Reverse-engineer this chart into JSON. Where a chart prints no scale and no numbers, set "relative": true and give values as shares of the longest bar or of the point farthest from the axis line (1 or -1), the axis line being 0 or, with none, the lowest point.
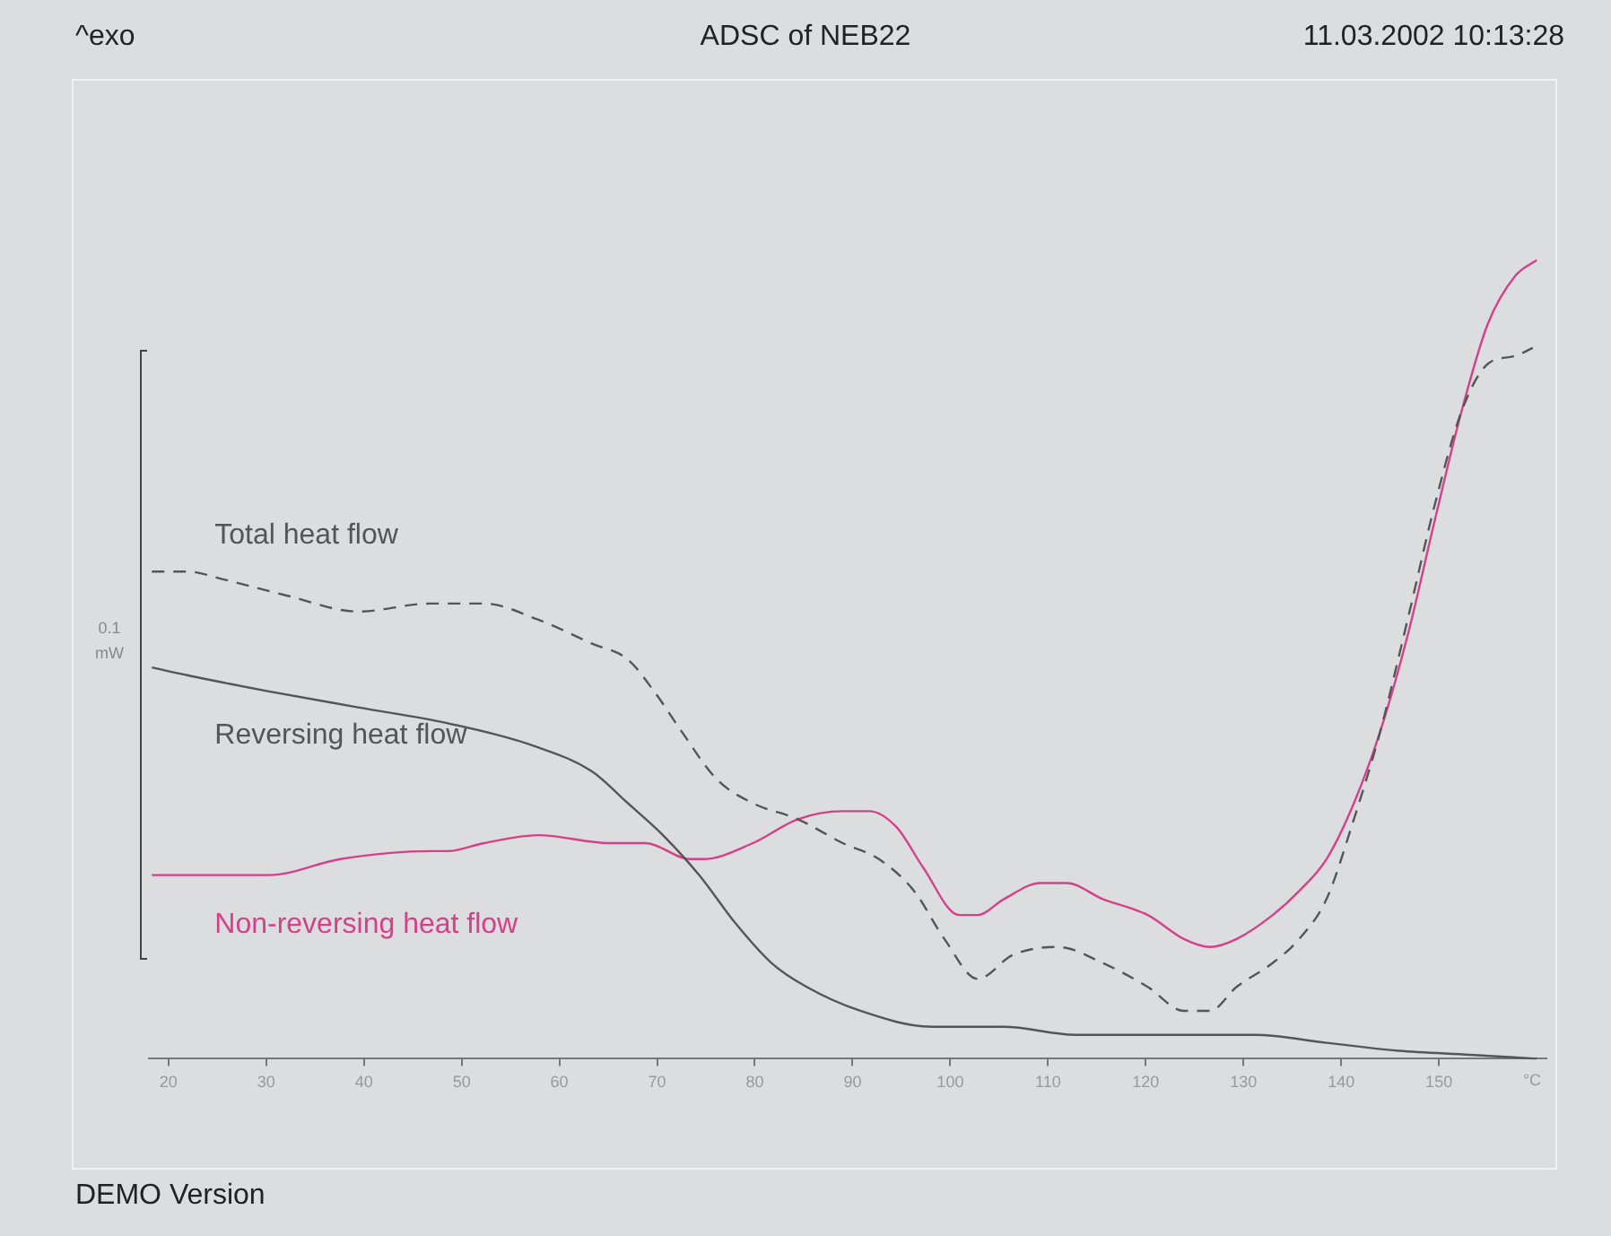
{
  "chart_data": {
    "type": "line",
    "title": "ADSC of NEB22",
    "xlabel": "°C",
    "relative": true,
    "legend": false,
    "grid": false,
    "marker": "none",
    "xlim": [
      18,
      161
    ],
    "xticks": [
      20,
      30,
      40,
      50,
      60,
      70,
      80,
      90,
      100,
      110,
      120,
      130,
      140,
      150
    ],
    "annotations": [
      "^exo",
      "11.03.2002 10:13:28",
      "DEMO Version",
      "0.1 mW"
    ],
    "series": [
      {
        "name": "Total heat flow",
        "color": "#555555",
        "line_style": "dashed",
        "x": [
          18.3,
          22.0,
          25.7,
          32.1,
          39.4,
          46.8,
          52.3,
          57.8,
          63.3,
          67.0,
          69.7,
          72.5,
          76.1,
          79.8,
          84.4,
          89.0,
          92.7,
          96.3,
          99.4,
          102.8,
          106.4,
          111.0,
          115.6,
          120.2,
          123.9,
          126.6,
          129.3,
          133.0,
          135.7,
          138.5,
          141.3,
          144.0,
          146.8,
          149.5,
          152.3,
          155.0,
          157.8,
          159.6
        ],
        "values": [
          0.61,
          0.61,
          0.6,
          0.58,
          0.56,
          0.57,
          0.57,
          0.55,
          0.52,
          0.5,
          0.46,
          0.41,
          0.35,
          0.32,
          0.3,
          0.27,
          0.25,
          0.21,
          0.15,
          0.1,
          0.13,
          0.14,
          0.12,
          0.09,
          0.06,
          0.06,
          0.09,
          0.12,
          0.15,
          0.2,
          0.3,
          0.41,
          0.55,
          0.69,
          0.81,
          0.87,
          0.88,
          0.89
        ]
      },
      {
        "name": "Reversing heat flow",
        "color": "#555555",
        "line_style": "solid",
        "x": [
          18.3,
          22.0,
          30.3,
          39.4,
          48.6,
          57.8,
          63.3,
          67.0,
          70.6,
          74.3,
          78.0,
          81.7,
          85.3,
          90.8,
          98.2,
          105.5,
          112.8,
          122.0,
          131.2,
          138.5,
          145.9,
          153.2,
          160
        ],
        "values": [
          0.49,
          0.48,
          0.46,
          0.44,
          0.42,
          0.39,
          0.36,
          0.32,
          0.28,
          0.23,
          0.17,
          0.12,
          0.09,
          0.06,
          0.04,
          0.04,
          0.03,
          0.03,
          0.03,
          0.02,
          0.01,
          0.005,
          0
        ]
      },
      {
        "name": "Non-reversing heat flow",
        "color": "#d4418a",
        "line_style": "solid",
        "x": [
          18.3,
          21.1,
          24.8,
          30.3,
          37.6,
          46.8,
          48.6,
          52.3,
          57.8,
          65.1,
          68.8,
          73.4,
          74.7,
          79.8,
          84.4,
          89.0,
          91.7,
          94.5,
          97.2,
          100.9,
          102.8,
          105.5,
          109.2,
          111.9,
          115.6,
          120.2,
          123.9,
          126.6,
          129.3,
          133.0,
          135.7,
          138.5,
          141.3,
          144.0,
          146.8,
          149.5,
          152.3,
          155.0,
          157.8,
          160
        ],
        "values": [
          0.23,
          0.23,
          0.23,
          0.23,
          0.25,
          0.26,
          0.26,
          0.27,
          0.28,
          0.27,
          0.27,
          0.25,
          0.25,
          0.27,
          0.3,
          0.31,
          0.31,
          0.29,
          0.24,
          0.18,
          0.18,
          0.2,
          0.22,
          0.22,
          0.2,
          0.18,
          0.15,
          0.14,
          0.15,
          0.18,
          0.21,
          0.25,
          0.32,
          0.41,
          0.53,
          0.67,
          0.81,
          0.92,
          0.98,
          1
        ]
      }
    ]
  }
}
